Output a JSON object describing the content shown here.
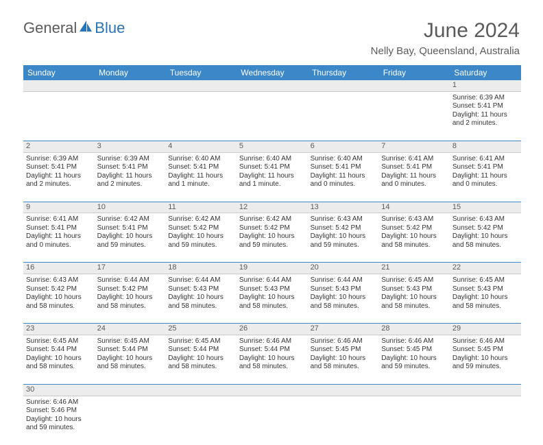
{
  "logo": {
    "part1": "General",
    "part2": "Blue"
  },
  "title": "June 2024",
  "subtitle": "Nelly Bay, Queensland, Australia",
  "colors": {
    "header_bg": "#3b87c8",
    "header_text": "#ffffff",
    "daynum_bg": "#ececec",
    "border": "#3b87c8",
    "border_light": "#c9c9c9",
    "text": "#333333",
    "title_text": "#5a5a5a",
    "logo_blue": "#2a74b8"
  },
  "weekday_headers": [
    "Sunday",
    "Monday",
    "Tuesday",
    "Wednesday",
    "Thursday",
    "Friday",
    "Saturday"
  ],
  "weeks": [
    [
      null,
      null,
      null,
      null,
      null,
      null,
      {
        "n": "1",
        "sr": "Sunrise: 6:39 AM",
        "ss": "Sunset: 5:41 PM",
        "d1": "Daylight: 11 hours",
        "d2": "and 2 minutes."
      }
    ],
    [
      {
        "n": "2",
        "sr": "Sunrise: 6:39 AM",
        "ss": "Sunset: 5:41 PM",
        "d1": "Daylight: 11 hours",
        "d2": "and 2 minutes."
      },
      {
        "n": "3",
        "sr": "Sunrise: 6:39 AM",
        "ss": "Sunset: 5:41 PM",
        "d1": "Daylight: 11 hours",
        "d2": "and 2 minutes."
      },
      {
        "n": "4",
        "sr": "Sunrise: 6:40 AM",
        "ss": "Sunset: 5:41 PM",
        "d1": "Daylight: 11 hours",
        "d2": "and 1 minute."
      },
      {
        "n": "5",
        "sr": "Sunrise: 6:40 AM",
        "ss": "Sunset: 5:41 PM",
        "d1": "Daylight: 11 hours",
        "d2": "and 1 minute."
      },
      {
        "n": "6",
        "sr": "Sunrise: 6:40 AM",
        "ss": "Sunset: 5:41 PM",
        "d1": "Daylight: 11 hours",
        "d2": "and 0 minutes."
      },
      {
        "n": "7",
        "sr": "Sunrise: 6:41 AM",
        "ss": "Sunset: 5:41 PM",
        "d1": "Daylight: 11 hours",
        "d2": "and 0 minutes."
      },
      {
        "n": "8",
        "sr": "Sunrise: 6:41 AM",
        "ss": "Sunset: 5:41 PM",
        "d1": "Daylight: 11 hours",
        "d2": "and 0 minutes."
      }
    ],
    [
      {
        "n": "9",
        "sr": "Sunrise: 6:41 AM",
        "ss": "Sunset: 5:41 PM",
        "d1": "Daylight: 11 hours",
        "d2": "and 0 minutes."
      },
      {
        "n": "10",
        "sr": "Sunrise: 6:42 AM",
        "ss": "Sunset: 5:41 PM",
        "d1": "Daylight: 10 hours",
        "d2": "and 59 minutes."
      },
      {
        "n": "11",
        "sr": "Sunrise: 6:42 AM",
        "ss": "Sunset: 5:42 PM",
        "d1": "Daylight: 10 hours",
        "d2": "and 59 minutes."
      },
      {
        "n": "12",
        "sr": "Sunrise: 6:42 AM",
        "ss": "Sunset: 5:42 PM",
        "d1": "Daylight: 10 hours",
        "d2": "and 59 minutes."
      },
      {
        "n": "13",
        "sr": "Sunrise: 6:43 AM",
        "ss": "Sunset: 5:42 PM",
        "d1": "Daylight: 10 hours",
        "d2": "and 59 minutes."
      },
      {
        "n": "14",
        "sr": "Sunrise: 6:43 AM",
        "ss": "Sunset: 5:42 PM",
        "d1": "Daylight: 10 hours",
        "d2": "and 58 minutes."
      },
      {
        "n": "15",
        "sr": "Sunrise: 6:43 AM",
        "ss": "Sunset: 5:42 PM",
        "d1": "Daylight: 10 hours",
        "d2": "and 58 minutes."
      }
    ],
    [
      {
        "n": "16",
        "sr": "Sunrise: 6:43 AM",
        "ss": "Sunset: 5:42 PM",
        "d1": "Daylight: 10 hours",
        "d2": "and 58 minutes."
      },
      {
        "n": "17",
        "sr": "Sunrise: 6:44 AM",
        "ss": "Sunset: 5:42 PM",
        "d1": "Daylight: 10 hours",
        "d2": "and 58 minutes."
      },
      {
        "n": "18",
        "sr": "Sunrise: 6:44 AM",
        "ss": "Sunset: 5:43 PM",
        "d1": "Daylight: 10 hours",
        "d2": "and 58 minutes."
      },
      {
        "n": "19",
        "sr": "Sunrise: 6:44 AM",
        "ss": "Sunset: 5:43 PM",
        "d1": "Daylight: 10 hours",
        "d2": "and 58 minutes."
      },
      {
        "n": "20",
        "sr": "Sunrise: 6:44 AM",
        "ss": "Sunset: 5:43 PM",
        "d1": "Daylight: 10 hours",
        "d2": "and 58 minutes."
      },
      {
        "n": "21",
        "sr": "Sunrise: 6:45 AM",
        "ss": "Sunset: 5:43 PM",
        "d1": "Daylight: 10 hours",
        "d2": "and 58 minutes."
      },
      {
        "n": "22",
        "sr": "Sunrise: 6:45 AM",
        "ss": "Sunset: 5:43 PM",
        "d1": "Daylight: 10 hours",
        "d2": "and 58 minutes."
      }
    ],
    [
      {
        "n": "23",
        "sr": "Sunrise: 6:45 AM",
        "ss": "Sunset: 5:44 PM",
        "d1": "Daylight: 10 hours",
        "d2": "and 58 minutes."
      },
      {
        "n": "24",
        "sr": "Sunrise: 6:45 AM",
        "ss": "Sunset: 5:44 PM",
        "d1": "Daylight: 10 hours",
        "d2": "and 58 minutes."
      },
      {
        "n": "25",
        "sr": "Sunrise: 6:45 AM",
        "ss": "Sunset: 5:44 PM",
        "d1": "Daylight: 10 hours",
        "d2": "and 58 minutes."
      },
      {
        "n": "26",
        "sr": "Sunrise: 6:46 AM",
        "ss": "Sunset: 5:44 PM",
        "d1": "Daylight: 10 hours",
        "d2": "and 58 minutes."
      },
      {
        "n": "27",
        "sr": "Sunrise: 6:46 AM",
        "ss": "Sunset: 5:45 PM",
        "d1": "Daylight: 10 hours",
        "d2": "and 58 minutes."
      },
      {
        "n": "28",
        "sr": "Sunrise: 6:46 AM",
        "ss": "Sunset: 5:45 PM",
        "d1": "Daylight: 10 hours",
        "d2": "and 59 minutes."
      },
      {
        "n": "29",
        "sr": "Sunrise: 6:46 AM",
        "ss": "Sunset: 5:45 PM",
        "d1": "Daylight: 10 hours",
        "d2": "and 59 minutes."
      }
    ],
    [
      {
        "n": "30",
        "sr": "Sunrise: 6:46 AM",
        "ss": "Sunset: 5:46 PM",
        "d1": "Daylight: 10 hours",
        "d2": "and 59 minutes."
      },
      null,
      null,
      null,
      null,
      null,
      null
    ]
  ]
}
